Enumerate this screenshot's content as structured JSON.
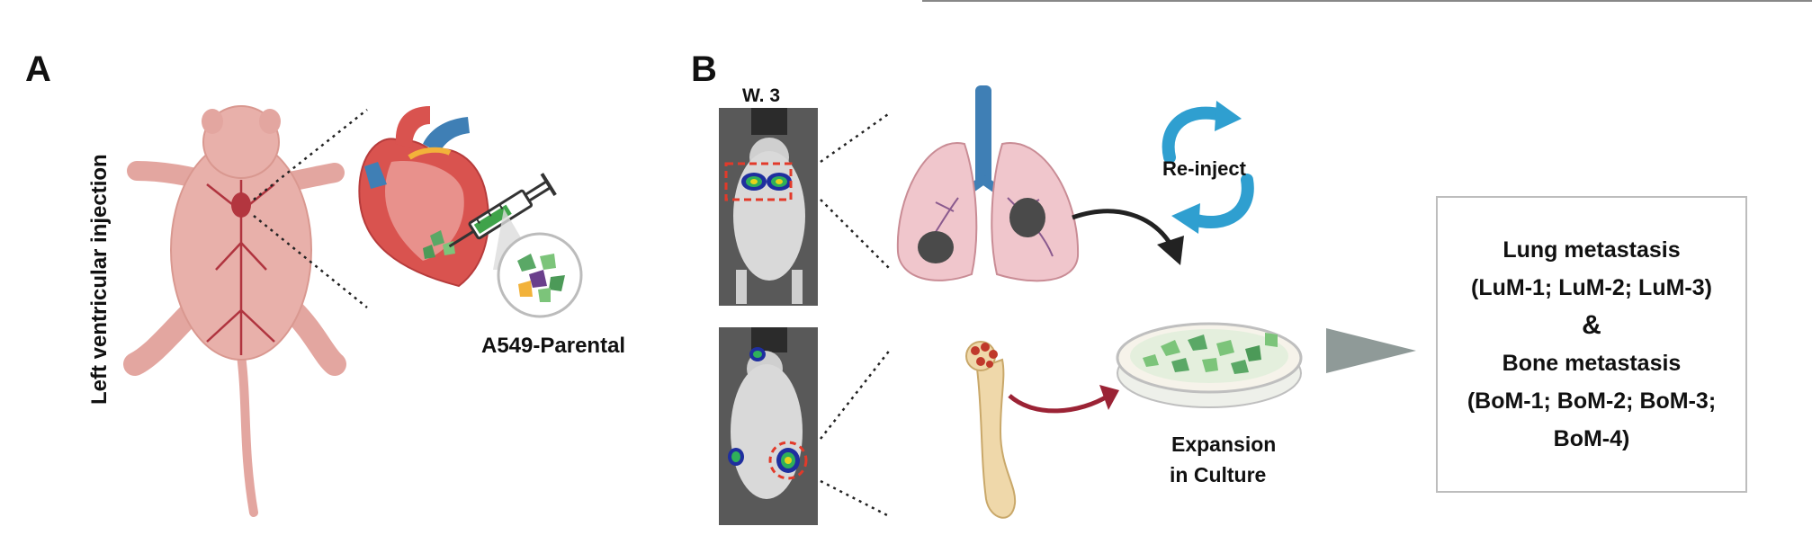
{
  "panel_a": {
    "letter": "A",
    "vertical_label": "Left ventricular injection",
    "cell_label": "A549-Parental"
  },
  "panel_b": {
    "letter": "B",
    "week_label": "W. 3",
    "reinject_label": "Re-inject",
    "expansion_line1": "Expansion",
    "expansion_line2": "in Culture"
  },
  "result": {
    "lung_title": "Lung metastasis",
    "lung_lines": "(LuM-1; LuM-2; LuM-3)",
    "ampersand": "&",
    "bone_title": "Bone metastasis",
    "bone_line1": "(BoM-1; BoM-2; BoM-3;",
    "bone_line2": "BoM-4)"
  },
  "colors": {
    "mouse": "#e3a6a0",
    "heart": "#d9534f",
    "lung": "#f0c6cc",
    "trachea": "#3f7fb5",
    "bone": "#efd8aa",
    "reinject_arrows": "#2f9fd0",
    "dish_cells": "#7cc47a",
    "dark_arrow": "#222222",
    "red_arrow": "#9b2335",
    "box_border": "#bdbdbd"
  }
}
